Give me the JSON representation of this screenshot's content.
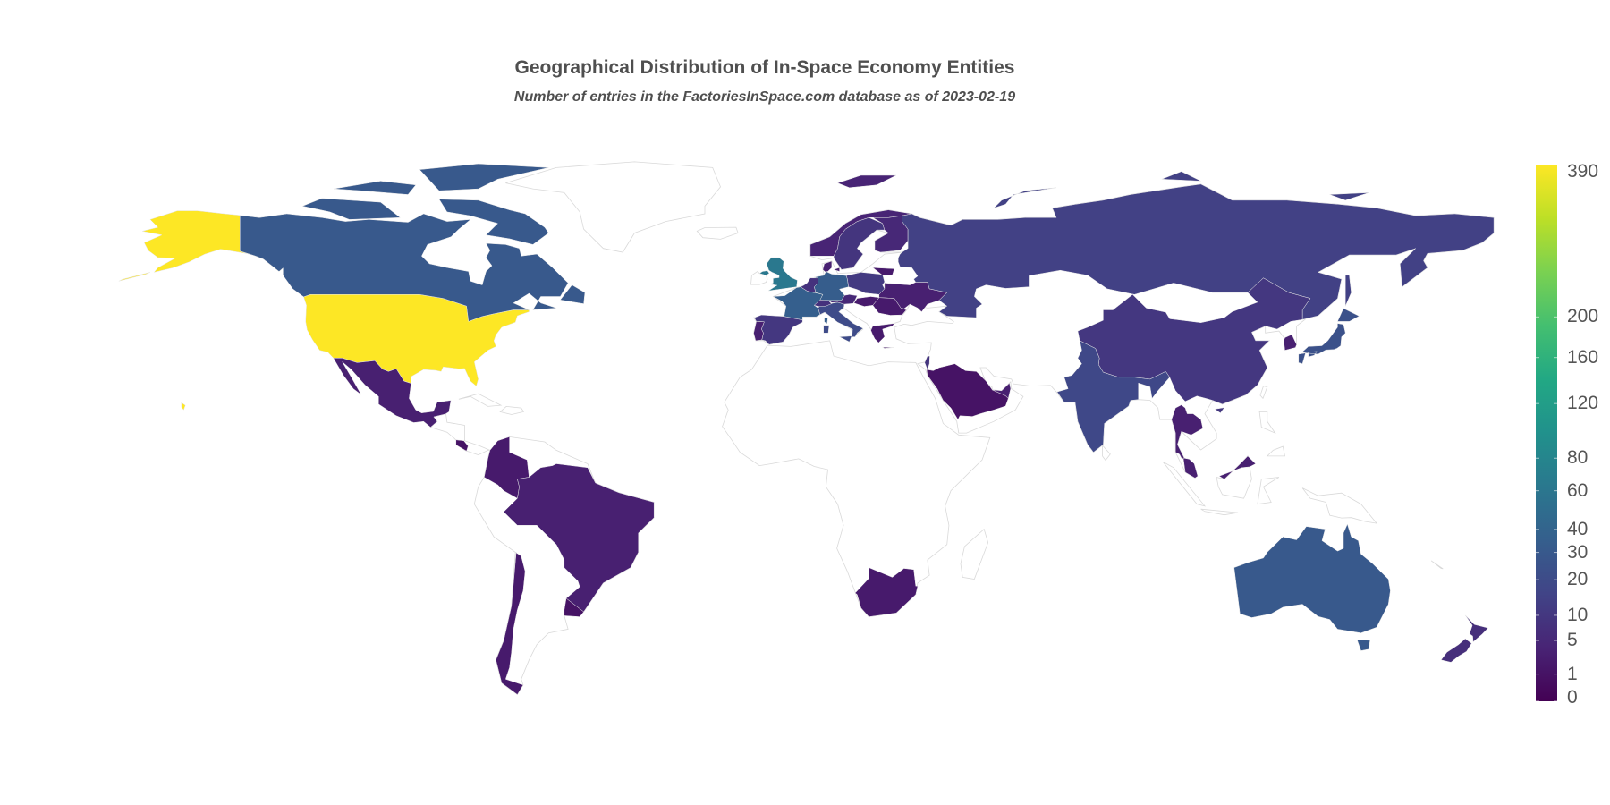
{
  "header": {
    "title": "Geographical Distribution of In-Space Economy Entities",
    "subtitle": "Number of entries in the FactoriesInSpace.com database as of 2023-02-19"
  },
  "chart_data": {
    "type": "choropleth",
    "title": "Geographical Distribution of In-Space Economy Entities",
    "subtitle": "Number of entries in the FactoriesInSpace.com database as of 2023-02-19",
    "colorscale": "viridis",
    "colorbar_scale": "sqrt",
    "colorbar_range": [
      0,
      390
    ],
    "colorbar_ticks": [
      "0",
      "1",
      "5",
      "10",
      "20",
      "30",
      "40",
      "60",
      "80",
      "120",
      "160",
      "200",
      "390"
    ],
    "colors": {
      "no_data_fill": "#ffffff",
      "border": "#d9d9d9",
      "text": "#4f4f4f"
    },
    "regions": [
      {
        "id": "USA",
        "value": 390
      },
      {
        "id": "CAN",
        "value": 30
      },
      {
        "id": "GBR",
        "value": 62
      },
      {
        "id": "FRA",
        "value": 35
      },
      {
        "id": "DEU",
        "value": 33
      },
      {
        "id": "NLD",
        "value": 8
      },
      {
        "id": "ITA",
        "value": 20
      },
      {
        "id": "CHE",
        "value": 8
      },
      {
        "id": "AUT",
        "value": 5
      },
      {
        "id": "ESP",
        "value": 10
      },
      {
        "id": "PRT",
        "value": 3
      },
      {
        "id": "POL",
        "value": 11
      },
      {
        "id": "NOR",
        "value": 4
      },
      {
        "id": "SWE",
        "value": 9
      },
      {
        "id": "FIN",
        "value": 5
      },
      {
        "id": "DNK",
        "value": 3
      },
      {
        "id": "UKR",
        "value": 3
      },
      {
        "id": "ROU",
        "value": 2
      },
      {
        "id": "HUN",
        "value": 2
      },
      {
        "id": "LTU",
        "value": 2
      },
      {
        "id": "GRC",
        "value": 2
      },
      {
        "id": "RUS",
        "value": 14
      },
      {
        "id": "CHN",
        "value": 10
      },
      {
        "id": "IND",
        "value": 18
      },
      {
        "id": "JPN",
        "value": 24
      },
      {
        "id": "KOR",
        "value": 3
      },
      {
        "id": "THA",
        "value": 3
      },
      {
        "id": "MYS",
        "value": 3
      },
      {
        "id": "AUS",
        "value": 30
      },
      {
        "id": "NZL",
        "value": 7
      },
      {
        "id": "SAU",
        "value": 1
      },
      {
        "id": "ARE",
        "value": 3
      },
      {
        "id": "ISR",
        "value": 9
      },
      {
        "id": "MEX",
        "value": 3
      },
      {
        "id": "CRI",
        "value": 1
      },
      {
        "id": "COL",
        "value": 2
      },
      {
        "id": "BRA",
        "value": 3
      },
      {
        "id": "CHL",
        "value": 2
      },
      {
        "id": "URY",
        "value": 1
      },
      {
        "id": "ZAF",
        "value": 2
      }
    ]
  }
}
